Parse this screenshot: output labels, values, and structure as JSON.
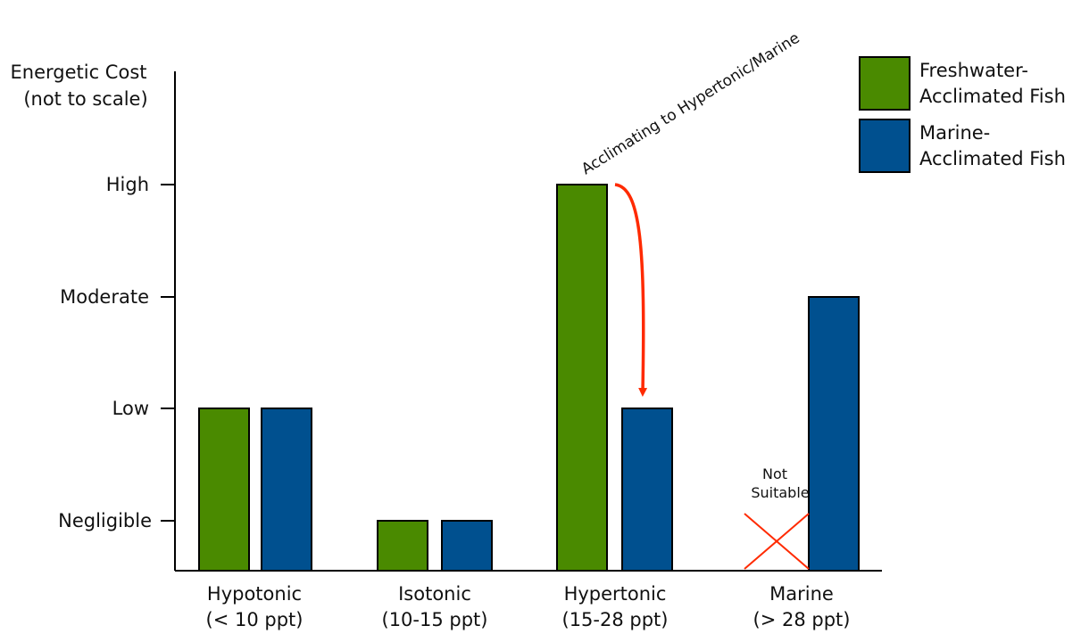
{
  "chart_data": {
    "type": "bar",
    "ylabel_lines": [
      "Energetic Cost",
      "(not to scale)"
    ],
    "y_levels": [
      "Negligible",
      "Low",
      "Moderate",
      "High"
    ],
    "categories": [
      {
        "name": "Hypotonic",
        "range": "(< 10 ppt)"
      },
      {
        "name": "Isotonic",
        "range": "(10-15 ppt)"
      },
      {
        "name": "Hypertonic",
        "range": "(15-28 ppt)"
      },
      {
        "name": "Marine",
        "range": "(> 28 ppt)"
      }
    ],
    "series": [
      {
        "name_lines": [
          "Freshwater-",
          "Acclimated Fish"
        ],
        "color": "#4a8a00",
        "values": [
          2,
          1,
          4,
          null
        ]
      },
      {
        "name_lines": [
          "Marine-",
          "Acclimated Fish"
        ],
        "color": "#00508f",
        "values": [
          2,
          1,
          2,
          3
        ]
      }
    ],
    "annotations": {
      "arrow_label": "Acclimating to Hypertonic/Marine",
      "arrow_color": "#ff2a00",
      "not_suitable_lines": [
        "Not",
        "Suitable"
      ]
    },
    "legend_position": "top-right",
    "grid": false
  }
}
